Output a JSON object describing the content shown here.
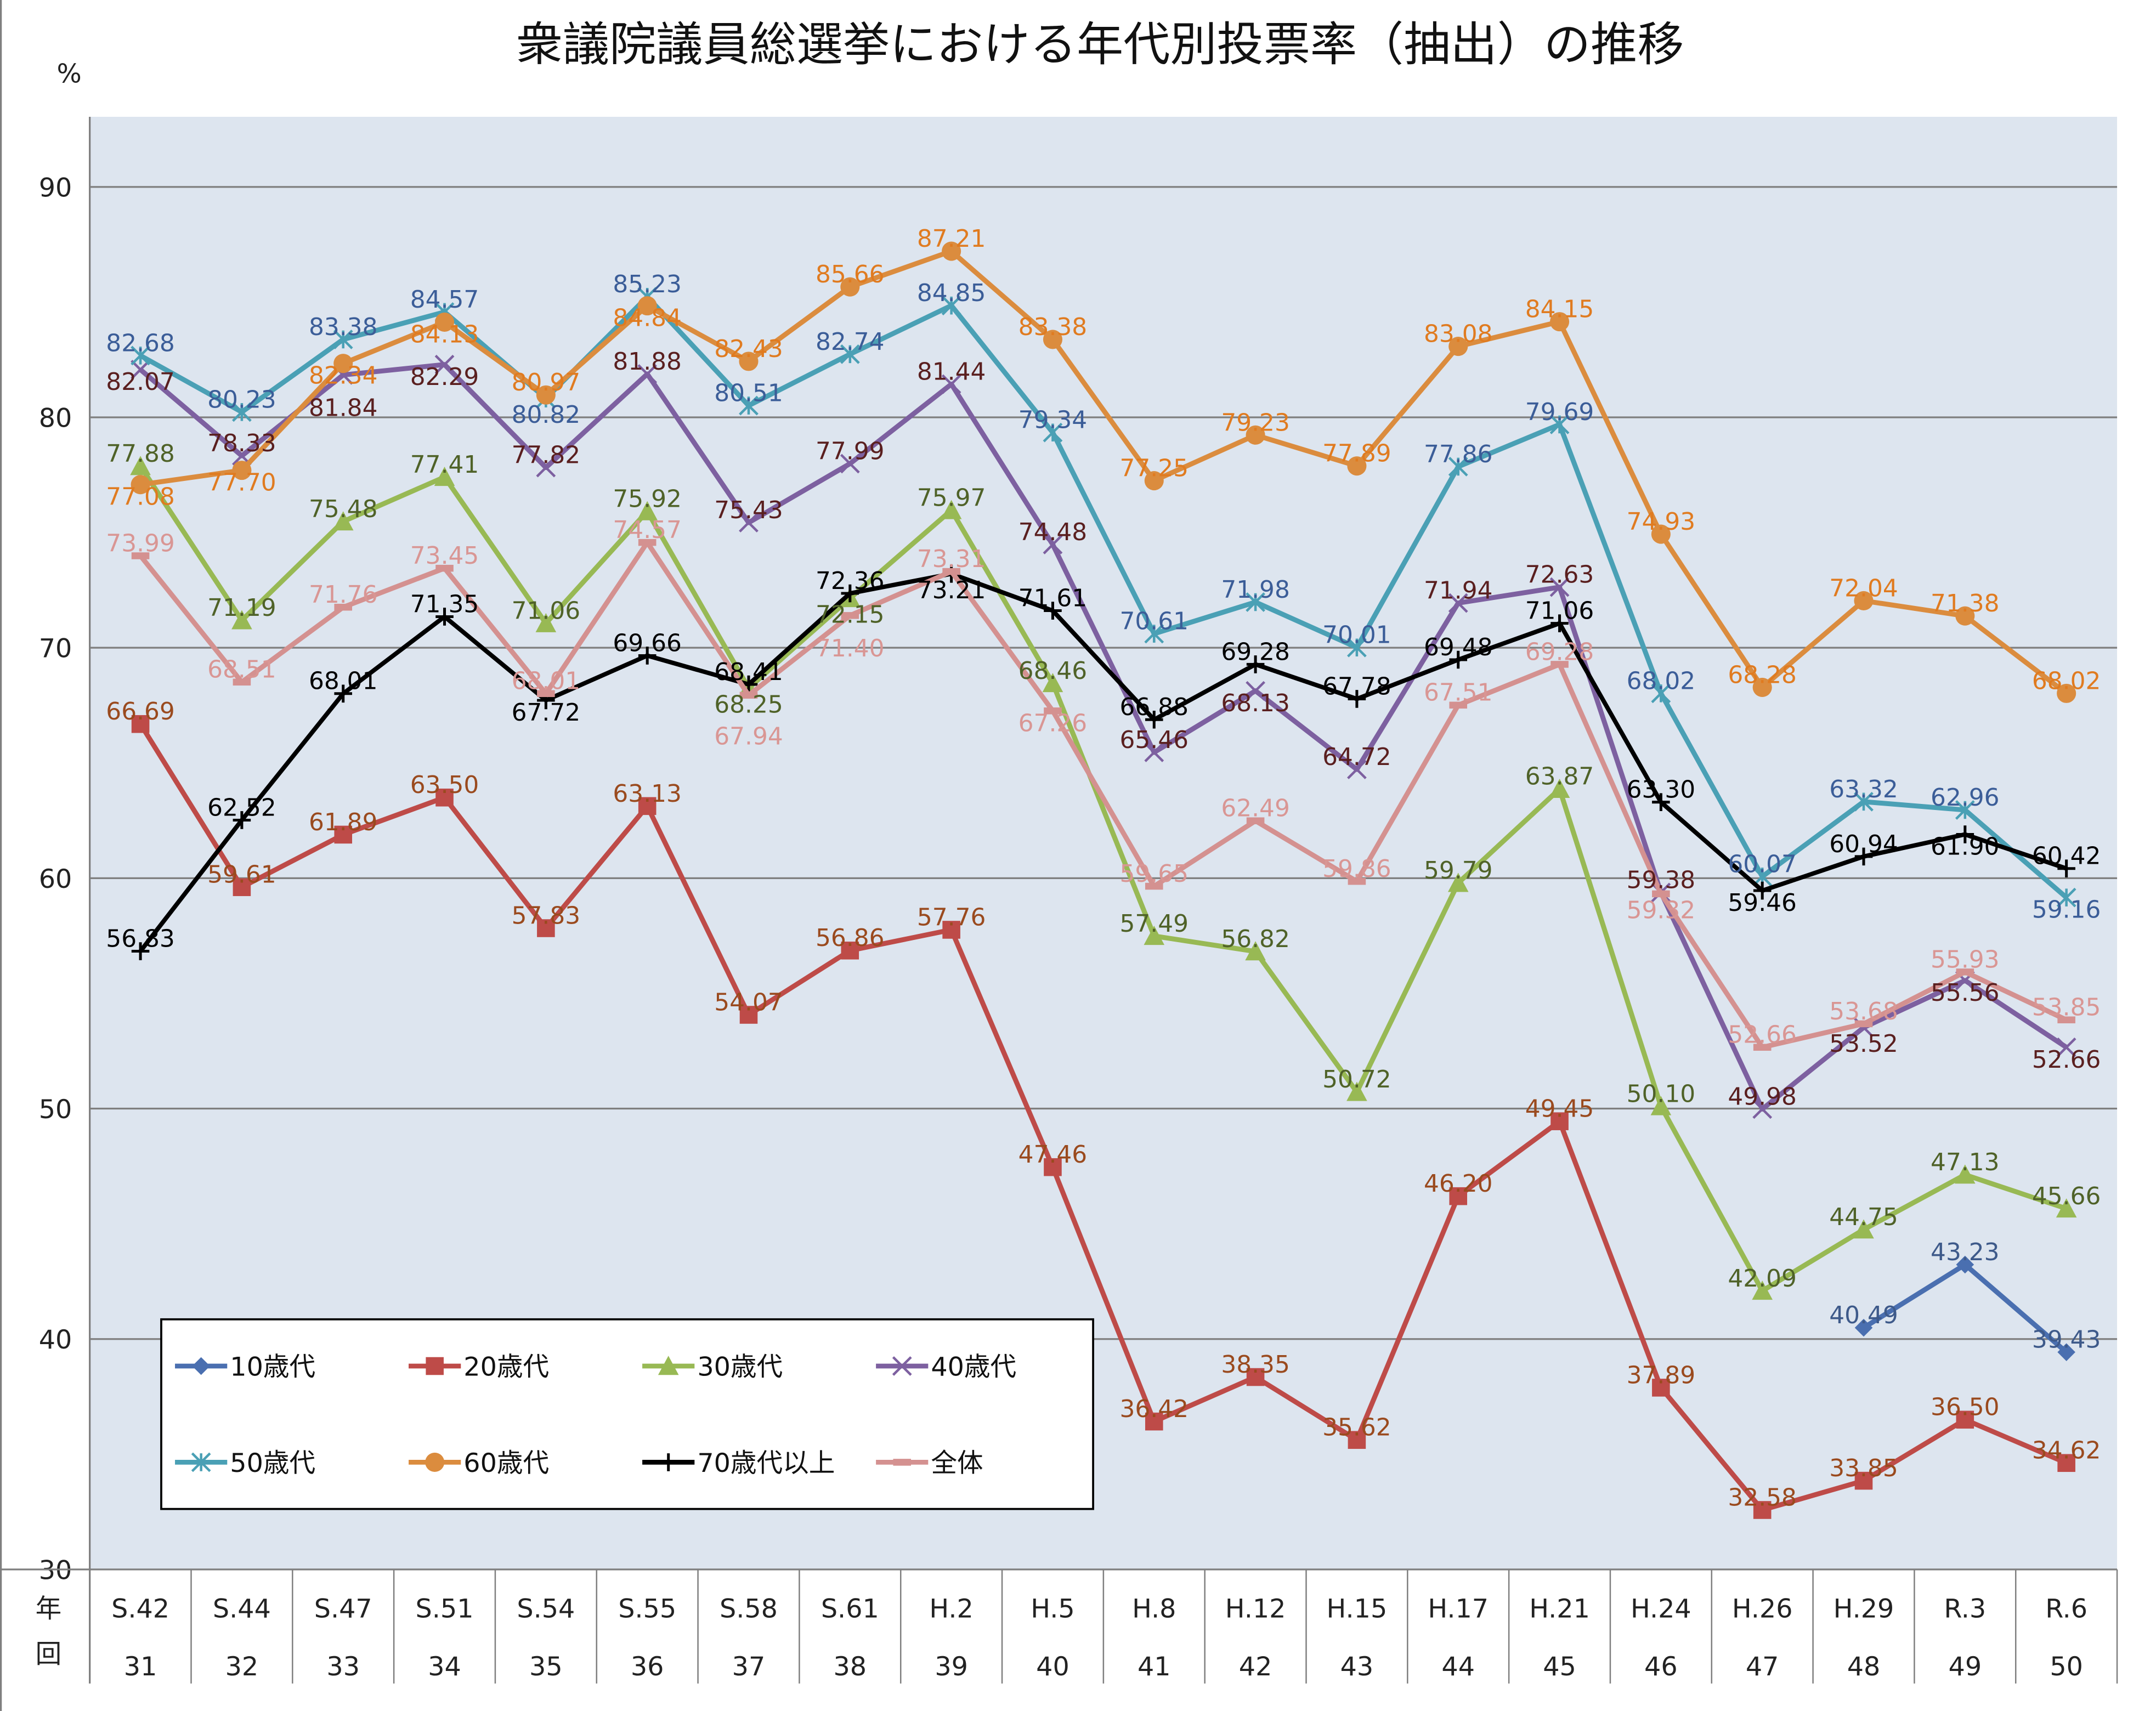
{
  "chart_data": {
    "type": "line",
    "title": "衆議院議員総選挙における年代別投票率（抽出）の推移",
    "ylabel": "%",
    "xlabel_rows": [
      "年",
      "回"
    ],
    "ylim": [
      30,
      90
    ],
    "yticks": [
      30,
      40,
      50,
      60,
      70,
      80,
      90
    ],
    "grid": true,
    "legend_position": "bottom-left inside",
    "categories": [
      "S.42",
      "S.44",
      "S.47",
      "S.51",
      "S.54",
      "S.55",
      "S.58",
      "S.61",
      "H.2",
      "H.5",
      "H.8",
      "H.12",
      "H.15",
      "H.17",
      "H.21",
      "H.24",
      "H.26",
      "H.29",
      "R.3",
      "R.6"
    ],
    "sessions": [
      "31",
      "32",
      "33",
      "34",
      "35",
      "36",
      "37",
      "38",
      "39",
      "40",
      "41",
      "42",
      "43",
      "44",
      "45",
      "46",
      "47",
      "48",
      "49",
      "50"
    ],
    "series": [
      {
        "name": "10歳代",
        "color": "#4a6fb0",
        "label_color": "#3e5a8a",
        "marker": "diamond",
        "values": [
          null,
          null,
          null,
          null,
          null,
          null,
          null,
          null,
          null,
          null,
          null,
          null,
          null,
          null,
          null,
          null,
          null,
          40.49,
          43.23,
          39.43
        ]
      },
      {
        "name": "20歳代",
        "color": "#be4b48",
        "label_color": "#9a4a1e",
        "marker": "square",
        "values": [
          66.69,
          59.61,
          61.89,
          63.5,
          57.83,
          63.13,
          54.07,
          56.86,
          57.76,
          47.46,
          36.42,
          38.35,
          35.62,
          46.2,
          49.45,
          37.89,
          32.58,
          33.85,
          36.5,
          34.62
        ]
      },
      {
        "name": "30歳代",
        "color": "#98b954",
        "label_color": "#4f6228",
        "marker": "triangle",
        "values": [
          77.88,
          71.19,
          75.48,
          77.41,
          71.06,
          75.92,
          68.25,
          72.15,
          75.97,
          68.46,
          57.49,
          56.82,
          50.72,
          59.79,
          63.87,
          50.1,
          42.09,
          44.75,
          47.13,
          45.66
        ]
      },
      {
        "name": "40歳代",
        "color": "#7d60a0",
        "label_color": "#5a1f1f",
        "marker": "x",
        "values": [
          82.07,
          78.33,
          81.84,
          82.29,
          77.82,
          81.88,
          75.43,
          77.99,
          81.44,
          74.48,
          65.46,
          68.13,
          64.72,
          71.94,
          72.63,
          59.38,
          49.98,
          53.52,
          55.56,
          52.66
        ]
      },
      {
        "name": "50歳代",
        "color": "#4aa0b5",
        "label_color": "#3b5d98",
        "marker": "star",
        "values": [
          82.68,
          80.23,
          83.38,
          84.57,
          80.82,
          85.23,
          80.51,
          82.74,
          84.85,
          79.34,
          70.61,
          71.98,
          70.01,
          77.86,
          79.69,
          68.02,
          60.07,
          63.32,
          62.96,
          59.16
        ]
      },
      {
        "name": "60歳代",
        "color": "#db8c3e",
        "label_color": "#e07b20",
        "marker": "circle",
        "values": [
          77.08,
          77.7,
          82.34,
          84.13,
          80.97,
          84.84,
          82.43,
          85.66,
          87.21,
          83.38,
          77.25,
          79.23,
          77.89,
          83.08,
          84.15,
          74.93,
          68.28,
          72.04,
          71.38,
          68.02
        ]
      },
      {
        "name": "70歳代以上",
        "color": "#000000",
        "label_color": "#000000",
        "marker": "plus",
        "values": [
          56.83,
          62.52,
          68.01,
          71.35,
          67.72,
          69.66,
          68.41,
          72.36,
          73.21,
          71.61,
          66.88,
          69.28,
          67.78,
          69.48,
          71.06,
          63.3,
          59.46,
          60.94,
          61.9,
          60.42
        ]
      },
      {
        "name": "全体",
        "color": "#d49190",
        "label_color": "#d99694",
        "marker": "dash",
        "values": [
          73.99,
          68.51,
          71.76,
          73.45,
          68.01,
          74.57,
          67.94,
          71.4,
          73.31,
          67.26,
          59.65,
          62.49,
          59.86,
          67.51,
          69.28,
          59.32,
          52.66,
          53.68,
          55.93,
          53.85
        ]
      }
    ]
  }
}
